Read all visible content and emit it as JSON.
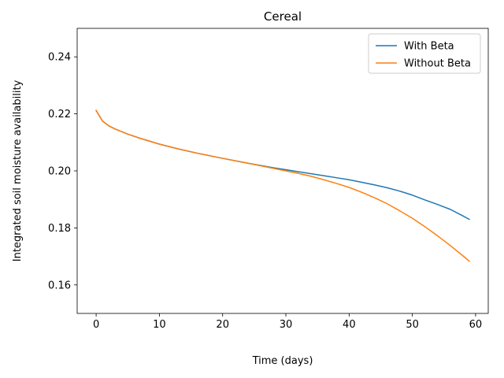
{
  "chart_data": {
    "type": "line",
    "title": "Cereal",
    "xlabel": "Time (days)",
    "ylabel": "Integrated soil moisture availability",
    "xlim": [
      -3,
      62
    ],
    "ylim": [
      0.15,
      0.25
    ],
    "xticks": [
      0,
      10,
      20,
      30,
      40,
      50,
      60
    ],
    "yticks": [
      0.16,
      0.18,
      0.2,
      0.22,
      0.24
    ],
    "xtick_labels": [
      "0",
      "10",
      "20",
      "30",
      "40",
      "50",
      "60"
    ],
    "ytick_labels": [
      "0.16",
      "0.18",
      "0.20",
      "0.22",
      "0.24"
    ],
    "grid": false,
    "legend_position": "top-right",
    "series": [
      {
        "name": "With Beta",
        "color": "#1f77b4",
        "x": [
          0,
          1,
          2,
          3,
          5,
          7,
          10,
          13,
          16,
          20,
          24,
          28,
          30,
          32,
          34,
          36,
          38,
          40,
          42,
          44,
          46,
          48,
          50,
          52,
          54,
          56,
          58,
          59
        ],
        "y": [
          0.2212,
          0.2175,
          0.2158,
          0.2147,
          0.2129,
          0.2114,
          0.2094,
          0.2077,
          0.2062,
          0.2044,
          0.2027,
          0.2011,
          0.2004,
          0.1997,
          0.199,
          0.1983,
          0.1976,
          0.1969,
          0.196,
          0.1951,
          0.1941,
          0.1929,
          0.1915,
          0.1898,
          0.1882,
          0.1865,
          0.1842,
          0.183
        ]
      },
      {
        "name": "Without Beta",
        "color": "#ff7f0e",
        "x": [
          0,
          1,
          2,
          3,
          5,
          7,
          10,
          13,
          16,
          20,
          24,
          28,
          30,
          32,
          34,
          36,
          38,
          40,
          42,
          44,
          46,
          48,
          50,
          52,
          54,
          56,
          58,
          59
        ],
        "y": [
          0.2212,
          0.2175,
          0.2158,
          0.2147,
          0.2129,
          0.2114,
          0.2094,
          0.2077,
          0.2062,
          0.2044,
          0.2027,
          0.2009,
          0.2,
          0.1991,
          0.1981,
          0.1969,
          0.1956,
          0.1942,
          0.1925,
          0.1906,
          0.1885,
          0.186,
          0.1834,
          0.1804,
          0.1772,
          0.1738,
          0.1702,
          0.1683
        ]
      }
    ]
  }
}
